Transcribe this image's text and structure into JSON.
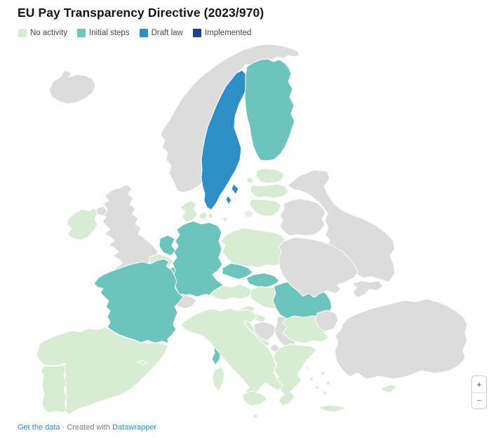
{
  "title": "EU Pay Transparency Directive (2023/970)",
  "legend": [
    {
      "key": "no_activity",
      "label": "No activity"
    },
    {
      "key": "initial_steps",
      "label": "Initial steps"
    },
    {
      "key": "draft_law",
      "label": "Draft law"
    },
    {
      "key": "implemented",
      "label": "Implemented"
    }
  ],
  "colors": {
    "no_activity": "#d7ecd2",
    "initial_steps": "#6cc4bd",
    "draft_law": "#2e8fc6",
    "implemented": "#1a4389",
    "none": "#dcdcdc",
    "none_light": "#ececec",
    "sea": "#ffffff"
  },
  "zoom": {
    "plus": "+",
    "minus": "−"
  },
  "footer": {
    "link1": "Get the data",
    "separator": "·",
    "created_with": "Created with",
    "brand": "Datawrapper"
  },
  "chart_data": {
    "type": "choropleth",
    "title": "EU Pay Transparency Directive (2023/970)",
    "legend_categories": [
      "No activity",
      "Initial steps",
      "Draft law",
      "Implemented"
    ],
    "legend_position": "top-left",
    "region": "Europe",
    "series": [
      {
        "country": "Sweden",
        "status": "Draft law"
      },
      {
        "country": "Finland",
        "status": "Initial steps"
      },
      {
        "country": "Germany",
        "status": "Initial steps"
      },
      {
        "country": "Netherlands",
        "status": "Initial steps"
      },
      {
        "country": "Luxembourg",
        "status": "Initial steps"
      },
      {
        "country": "France",
        "status": "Initial steps"
      },
      {
        "country": "Czechia",
        "status": "Initial steps"
      },
      {
        "country": "Slovakia",
        "status": "Initial steps"
      },
      {
        "country": "Romania",
        "status": "Initial steps"
      },
      {
        "country": "Ireland",
        "status": "No activity"
      },
      {
        "country": "Denmark",
        "status": "No activity"
      },
      {
        "country": "Belgium",
        "status": "No activity"
      },
      {
        "country": "Poland",
        "status": "No activity"
      },
      {
        "country": "Austria",
        "status": "No activity"
      },
      {
        "country": "Hungary",
        "status": "No activity"
      },
      {
        "country": "Slovenia",
        "status": "No activity"
      },
      {
        "country": "Croatia",
        "status": "No activity"
      },
      {
        "country": "Italy",
        "status": "No activity"
      },
      {
        "country": "Spain",
        "status": "No activity"
      },
      {
        "country": "Portugal",
        "status": "No activity"
      },
      {
        "country": "Greece",
        "status": "No activity"
      },
      {
        "country": "Bulgaria",
        "status": "No activity"
      },
      {
        "country": "Estonia",
        "status": "No activity"
      },
      {
        "country": "Latvia",
        "status": "No activity"
      },
      {
        "country": "Lithuania",
        "status": "No activity"
      },
      {
        "country": "Cyprus",
        "status": "No activity"
      },
      {
        "country": "Malta",
        "status": "No activity"
      },
      {
        "country": "Norway",
        "status": "non-EU / no data"
      },
      {
        "country": "Iceland",
        "status": "non-EU / no data"
      },
      {
        "country": "United Kingdom",
        "status": "non-EU / no data"
      },
      {
        "country": "Switzerland",
        "status": "non-EU / no data"
      },
      {
        "country": "Turkey",
        "status": "non-EU / no data"
      },
      {
        "country": "Ukraine",
        "status": "non-EU / no data"
      },
      {
        "country": "Belarus",
        "status": "non-EU / no data"
      },
      {
        "country": "Russia",
        "status": "non-EU / no data"
      },
      {
        "country": "Moldova",
        "status": "non-EU / no data"
      },
      {
        "country": "Serbia",
        "status": "non-EU / no data"
      },
      {
        "country": "Bosnia and Herzegovina",
        "status": "non-EU / no data"
      },
      {
        "country": "Albania",
        "status": "non-EU / no data"
      },
      {
        "country": "North Macedonia",
        "status": "non-EU / no data"
      },
      {
        "country": "Montenegro",
        "status": "non-EU / no data"
      }
    ]
  },
  "country_status": {
    "iceland": "none",
    "norway": "none",
    "united_kingdom": "none",
    "switzerland": "none",
    "russia": "none",
    "belarus": "none",
    "ukraine": "none",
    "moldova": "none",
    "turkey": "none",
    "serbia": "none",
    "bosnia": "none",
    "montenegro": "none",
    "albania": "none",
    "north_macedonia": "none",
    "kaliningrad": "none_light",
    "sweden": "draft_law",
    "finland": "initial_steps",
    "germany": "initial_steps",
    "netherlands": "initial_steps",
    "luxembourg": "initial_steps",
    "france": "initial_steps",
    "czechia": "initial_steps",
    "slovakia": "initial_steps",
    "romania": "initial_steps",
    "ireland": "no_activity",
    "denmark": "no_activity",
    "belgium": "no_activity",
    "poland": "no_activity",
    "austria": "no_activity",
    "hungary": "no_activity",
    "slovenia": "no_activity",
    "croatia": "no_activity",
    "italy": "no_activity",
    "spain": "no_activity",
    "portugal": "no_activity",
    "greece": "no_activity",
    "bulgaria": "no_activity",
    "estonia": "no_activity",
    "latvia": "no_activity",
    "lithuania": "no_activity",
    "cyprus": "no_activity",
    "malta": "no_activity"
  }
}
